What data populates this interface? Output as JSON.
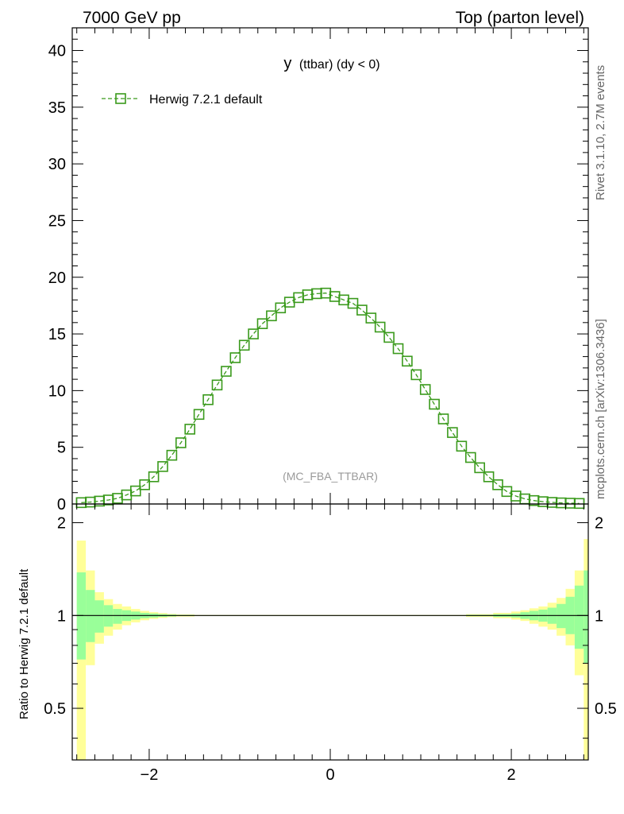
{
  "header": {
    "left": "7000 GeV pp",
    "right": "Top (parton level)"
  },
  "side_labels": {
    "rivet": "Rivet 3.1.10,  2.7M events",
    "mcplots": "mcplots.cern.ch [arXiv:1306.3436]"
  },
  "colors": {
    "series": "#3a9a1c",
    "band_inner": "#99ff99",
    "band_outer": "#ffff99"
  },
  "chart_data": [
    {
      "type": "line",
      "title": "y (ttbar) (dy < 0)",
      "title_main": "y",
      "title_rest": "(ttbar) (dy < 0)",
      "watermark": "(MC_FBA_TTBAR)",
      "xlim": [
        -2.85,
        2.85
      ],
      "ylim": [
        0,
        42
      ],
      "yticks": [
        0,
        5,
        10,
        15,
        20,
        25,
        30,
        35,
        40
      ],
      "xticks": [
        -2,
        0,
        2
      ],
      "legend": "top-left",
      "series": [
        {
          "name": "Herwig 7.2.1 default",
          "marker": "open-square",
          "x": [
            -2.75,
            -2.65,
            -2.55,
            -2.45,
            -2.35,
            -2.25,
            -2.15,
            -2.05,
            -1.95,
            -1.85,
            -1.75,
            -1.65,
            -1.55,
            -1.45,
            -1.35,
            -1.25,
            -1.15,
            -1.05,
            -0.95,
            -0.85,
            -0.75,
            -0.65,
            -0.55,
            -0.45,
            -0.35,
            -0.25,
            -0.15,
            -0.05,
            0.05,
            0.15,
            0.25,
            0.35,
            0.45,
            0.55,
            0.65,
            0.75,
            0.85,
            0.95,
            1.05,
            1.15,
            1.25,
            1.35,
            1.45,
            1.55,
            1.65,
            1.75,
            1.85,
            1.95,
            2.05,
            2.15,
            2.25,
            2.35,
            2.45,
            2.55,
            2.65,
            2.75
          ],
          "y": [
            0.12,
            0.17,
            0.25,
            0.35,
            0.5,
            0.8,
            1.15,
            1.7,
            2.4,
            3.3,
            4.3,
            5.4,
            6.6,
            7.9,
            9.2,
            10.5,
            11.7,
            12.9,
            14.0,
            15.0,
            15.9,
            16.6,
            17.3,
            17.8,
            18.2,
            18.45,
            18.55,
            18.6,
            18.3,
            18.0,
            17.7,
            17.1,
            16.4,
            15.6,
            14.7,
            13.7,
            12.6,
            11.4,
            10.1,
            8.8,
            7.5,
            6.3,
            5.1,
            4.1,
            3.2,
            2.4,
            1.7,
            1.1,
            0.7,
            0.45,
            0.3,
            0.2,
            0.14,
            0.1,
            0.07,
            0.05
          ]
        }
      ]
    },
    {
      "type": "area",
      "ylabel": "Ratio to Herwig 7.2.1 default",
      "xlim": [
        -2.85,
        2.85
      ],
      "ylim": [
        0.34,
        2.3
      ],
      "yscale": "log",
      "yticks": [
        0.5,
        1,
        2
      ],
      "xticks": [
        -2,
        0,
        2
      ],
      "edges": [
        -2.8,
        -2.7,
        -2.6,
        -2.5,
        -2.4,
        -2.3,
        -2.2,
        -2.1,
        -2.0,
        -1.9,
        -1.8,
        -1.7,
        -1.6,
        -1.5,
        2.3,
        2.4,
        2.5,
        2.6,
        2.7,
        2.8
      ],
      "bands": [
        {
          "x0": -2.8,
          "x1": -2.7,
          "outer": [
            0.34,
            1.75
          ],
          "inner": [
            0.72,
            1.38
          ]
        },
        {
          "x0": -2.7,
          "x1": -2.6,
          "outer": [
            0.69,
            1.4
          ],
          "inner": [
            0.82,
            1.21
          ]
        },
        {
          "x0": -2.6,
          "x1": -2.5,
          "outer": [
            0.81,
            1.19
          ],
          "inner": [
            0.88,
            1.12
          ]
        },
        {
          "x0": -2.5,
          "x1": -2.4,
          "outer": [
            0.86,
            1.13
          ],
          "inner": [
            0.92,
            1.08
          ]
        },
        {
          "x0": -2.4,
          "x1": -2.3,
          "outer": [
            0.9,
            1.09
          ],
          "inner": [
            0.94,
            1.05
          ]
        },
        {
          "x0": -2.3,
          "x1": -2.2,
          "outer": [
            0.93,
            1.07
          ],
          "inner": [
            0.96,
            1.04
          ]
        },
        {
          "x0": -2.2,
          "x1": -2.1,
          "outer": [
            0.95,
            1.05
          ],
          "inner": [
            0.97,
            1.03
          ]
        },
        {
          "x0": -2.1,
          "x1": -2.0,
          "outer": [
            0.965,
            1.035
          ],
          "inner": [
            0.98,
            1.02
          ]
        },
        {
          "x0": -2.0,
          "x1": -1.9,
          "outer": [
            0.975,
            1.025
          ],
          "inner": [
            0.985,
            1.015
          ]
        },
        {
          "x0": -1.9,
          "x1": -1.8,
          "outer": [
            0.982,
            1.018
          ],
          "inner": [
            0.99,
            1.01
          ]
        },
        {
          "x0": -1.8,
          "x1": -1.7,
          "outer": [
            0.988,
            1.012
          ],
          "inner": [
            0.993,
            1.007
          ]
        },
        {
          "x0": -1.7,
          "x1": -1.5,
          "outer": [
            0.992,
            1.008
          ],
          "inner": [
            0.996,
            1.004
          ]
        },
        {
          "x0": -1.5,
          "x1": 1.5,
          "outer": [
            0.996,
            1.004
          ],
          "inner": [
            0.998,
            1.002
          ]
        },
        {
          "x0": 1.5,
          "x1": 1.8,
          "outer": [
            0.99,
            1.01
          ],
          "inner": [
            0.995,
            1.005
          ]
        },
        {
          "x0": 1.8,
          "x1": 2.0,
          "outer": [
            0.98,
            1.02
          ],
          "inner": [
            0.99,
            1.01
          ]
        },
        {
          "x0": 2.0,
          "x1": 2.1,
          "outer": [
            0.97,
            1.03
          ],
          "inner": [
            0.985,
            1.015
          ]
        },
        {
          "x0": 2.1,
          "x1": 2.2,
          "outer": [
            0.96,
            1.04
          ],
          "inner": [
            0.975,
            1.025
          ]
        },
        {
          "x0": 2.2,
          "x1": 2.3,
          "outer": [
            0.94,
            1.055
          ],
          "inner": [
            0.965,
            1.035
          ]
        },
        {
          "x0": 2.3,
          "x1": 2.4,
          "outer": [
            0.92,
            1.07
          ],
          "inner": [
            0.955,
            1.045
          ]
        },
        {
          "x0": 2.4,
          "x1": 2.5,
          "outer": [
            0.9,
            1.1
          ],
          "inner": [
            0.94,
            1.06
          ]
        },
        {
          "x0": 2.5,
          "x1": 2.6,
          "outer": [
            0.86,
            1.14
          ],
          "inner": [
            0.91,
            1.09
          ]
        },
        {
          "x0": 2.6,
          "x1": 2.7,
          "outer": [
            0.8,
            1.22
          ],
          "inner": [
            0.87,
            1.15
          ]
        },
        {
          "x0": 2.7,
          "x1": 2.8,
          "outer": [
            0.64,
            1.4
          ],
          "inner": [
            0.78,
            1.25
          ]
        },
        {
          "x0": 2.8,
          "x1": 2.85,
          "outer": [
            0.34,
            1.77
          ],
          "inner": [
            0.7,
            1.4
          ]
        }
      ]
    }
  ]
}
